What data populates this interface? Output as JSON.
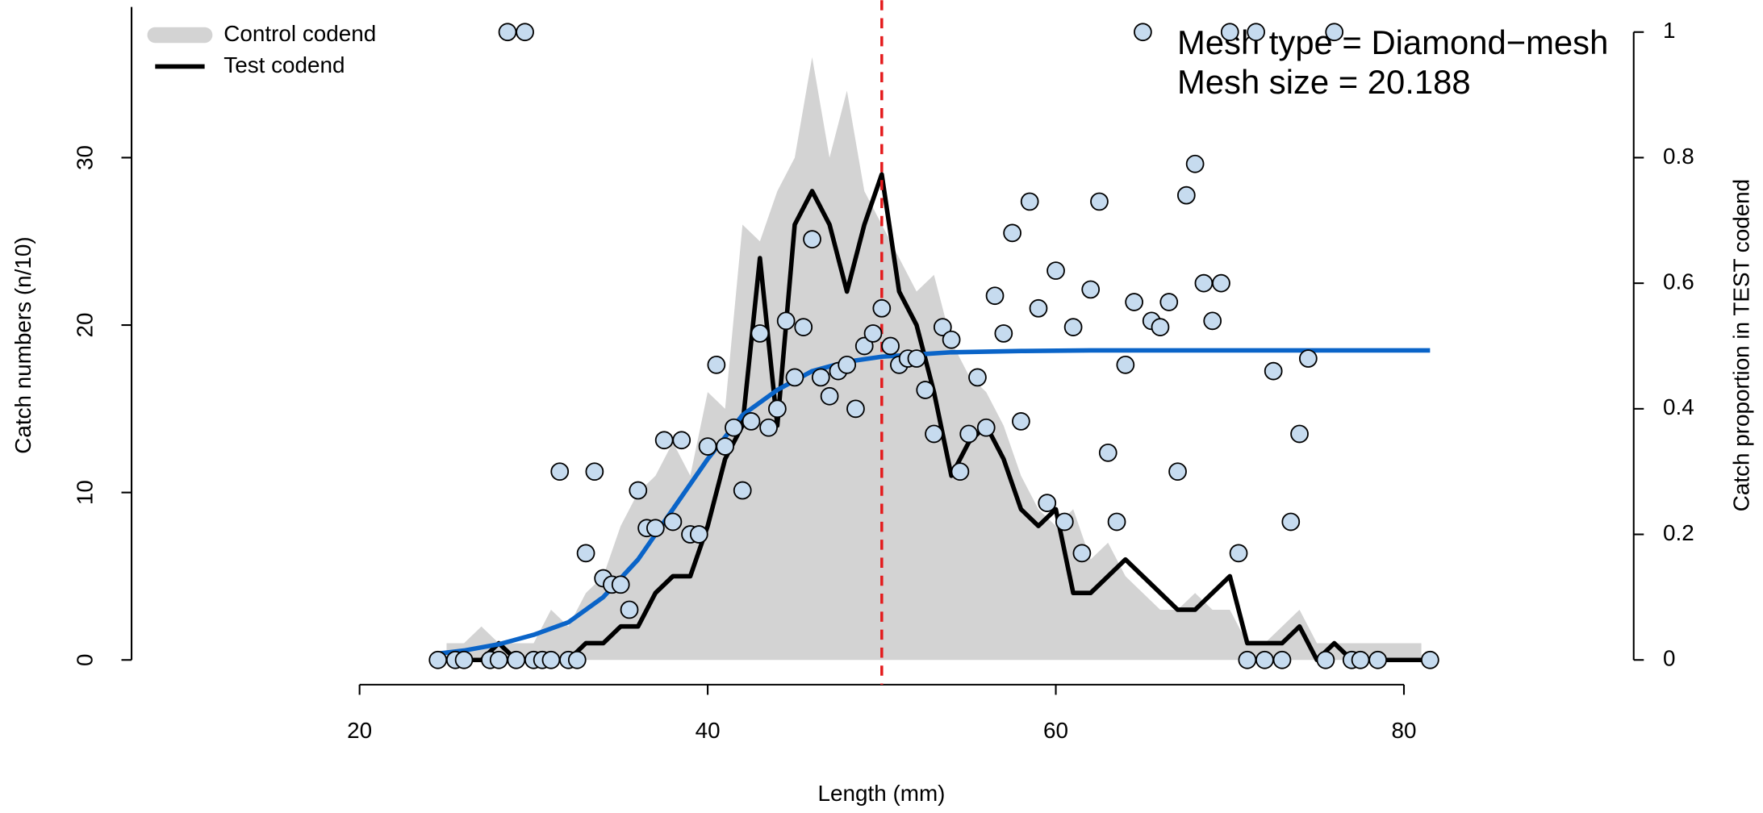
{
  "chart_data": {
    "type": "combo",
    "x_label": "Length (mm)",
    "y_label": "Catch numbers (n/10)",
    "y2_label": "Catch proportion in TEST codend",
    "annotations": [
      "Mesh type = Diamond−mesh",
      "Mesh size = 20.188"
    ],
    "xlim": [
      6.9,
      93.2
    ],
    "ylim": [
      0,
      39
    ],
    "y2lim": [
      0,
      1.04
    ],
    "xticks": [
      20,
      40,
      60,
      80
    ],
    "yticks": [
      0,
      10,
      20,
      30
    ],
    "y2ticks": [
      0,
      0.2,
      0.4,
      0.6,
      0.8,
      1
    ],
    "vline": {
      "value": 50,
      "color": "#e41a1c"
    },
    "legend": "top-left",
    "series": [
      {
        "name": "Control codend",
        "type": "area",
        "color": "#d3d3d3",
        "x": [
          25,
          26,
          27,
          28,
          29,
          30,
          31,
          32,
          33,
          34,
          35,
          36,
          37,
          38,
          39,
          40,
          41,
          42,
          43,
          44,
          45,
          46,
          47,
          48,
          49,
          50,
          51,
          52,
          53,
          54,
          55,
          56,
          57,
          58,
          59,
          60,
          61,
          62,
          63,
          64,
          65,
          66,
          67,
          68,
          69,
          70,
          71,
          72,
          73,
          74,
          75,
          76,
          77,
          78,
          79,
          80,
          81
        ],
        "values": [
          1,
          1,
          2,
          1,
          1,
          1,
          3,
          2,
          4,
          5,
          8,
          10,
          11,
          13,
          11,
          16,
          15,
          26,
          25,
          28,
          30,
          36,
          30,
          34,
          28,
          26,
          24,
          22,
          23,
          19,
          17,
          16,
          14,
          11,
          9,
          8,
          9,
          6,
          7,
          5,
          4,
          3,
          3,
          4,
          3,
          3,
          1,
          1,
          2,
          3,
          1,
          1,
          1,
          1,
          1,
          1,
          1
        ]
      },
      {
        "name": "Test codend",
        "type": "line",
        "color": "#000000",
        "x": [
          25,
          26,
          27,
          28,
          29,
          30,
          31,
          32,
          33,
          34,
          35,
          36,
          37,
          38,
          39,
          40,
          41,
          42,
          43,
          44,
          45,
          46,
          47,
          48,
          49,
          50,
          51,
          52,
          53,
          54,
          55,
          56,
          57,
          58,
          59,
          60,
          61,
          62,
          63,
          64,
          65,
          66,
          67,
          68,
          69,
          70,
          71,
          72,
          73,
          74,
          75,
          76,
          77,
          78,
          79,
          80,
          81
        ],
        "values": [
          0,
          0,
          0,
          1,
          0,
          0,
          0,
          0,
          1,
          1,
          2,
          2,
          4,
          5,
          5,
          8,
          12,
          14,
          24,
          14,
          26,
          28,
          26,
          22,
          26,
          29,
          22,
          20,
          16,
          11,
          13,
          14,
          12,
          9,
          8,
          9,
          4,
          4,
          5,
          6,
          5,
          4,
          3,
          3,
          4,
          5,
          1,
          1,
          1,
          2,
          0,
          1,
          0,
          0,
          0,
          0,
          0
        ]
      },
      {
        "type": "scatter",
        "axis": "y2",
        "color": "#c6dbef",
        "x": [
          24.5,
          25.5,
          26,
          27.5,
          28,
          28.5,
          29,
          29.5,
          30,
          30.5,
          31,
          31.5,
          32,
          32.5,
          33,
          33.5,
          34,
          34.5,
          35,
          35.5,
          36,
          36.5,
          37,
          37.5,
          38,
          38.5,
          39,
          39.5,
          40,
          40.5,
          41,
          41.5,
          42,
          42.5,
          43,
          43.5,
          44,
          44.5,
          45,
          45.5,
          46,
          46.5,
          47,
          47.5,
          48,
          48.5,
          49,
          49.5,
          50,
          50.5,
          51,
          51.5,
          52,
          52.5,
          53,
          53.5,
          54,
          54.5,
          55,
          55.5,
          56,
          56.5,
          57,
          57.5,
          58,
          58.5,
          59,
          59.5,
          60,
          60.5,
          61,
          61.5,
          62,
          62.5,
          63,
          63.5,
          64,
          64.5,
          65,
          65.5,
          66,
          66.5,
          67,
          67.5,
          68,
          68.5,
          69,
          69.5,
          70,
          70.5,
          71,
          71.5,
          72,
          72.5,
          73,
          73.5,
          74,
          74.5,
          75.5,
          76,
          77,
          77.5,
          78.5,
          81.5
        ],
        "values": [
          0,
          0,
          0,
          0,
          0,
          1,
          0,
          1,
          0,
          0,
          0,
          0.3,
          0,
          0,
          0.17,
          0.3,
          0.13,
          0.12,
          0.12,
          0.08,
          0.27,
          0.21,
          0.21,
          0.35,
          0.22,
          0.35,
          0.2,
          0.2,
          0.34,
          0.47,
          0.34,
          0.37,
          0.27,
          0.38,
          0.52,
          0.37,
          0.4,
          0.54,
          0.45,
          0.53,
          0.67,
          0.45,
          0.42,
          0.46,
          0.47,
          0.4,
          0.5,
          0.52,
          0.56,
          0.5,
          0.47,
          0.48,
          0.48,
          0.43,
          0.36,
          0.53,
          0.51,
          0.3,
          0.36,
          0.45,
          0.37,
          0.58,
          0.52,
          0.68,
          0.38,
          0.73,
          0.56,
          0.25,
          0.62,
          0.22,
          0.53,
          0.17,
          0.59,
          0.73,
          0.33,
          0.22,
          0.47,
          0.57,
          1,
          0.54,
          0.53,
          0.57,
          0.3,
          0.74,
          0.79,
          0.6,
          0.54,
          0.6,
          1,
          0.17,
          0,
          1,
          0,
          0.46,
          0,
          0.22,
          0.36,
          0.48,
          0,
          1,
          0,
          0,
          0,
          0
        ]
      },
      {
        "type": "line",
        "axis": "y2",
        "color": "#0a64c8",
        "x": [
          24.5,
          26,
          28,
          30,
          32,
          34,
          36,
          38,
          40,
          42,
          44,
          46,
          48,
          50,
          54,
          58,
          62,
          70,
          81.5
        ],
        "values": [
          0.01,
          0.015,
          0.025,
          0.04,
          0.06,
          0.1,
          0.16,
          0.24,
          0.32,
          0.39,
          0.43,
          0.46,
          0.475,
          0.483,
          0.49,
          0.492,
          0.493,
          0.493,
          0.493
        ]
      }
    ]
  }
}
